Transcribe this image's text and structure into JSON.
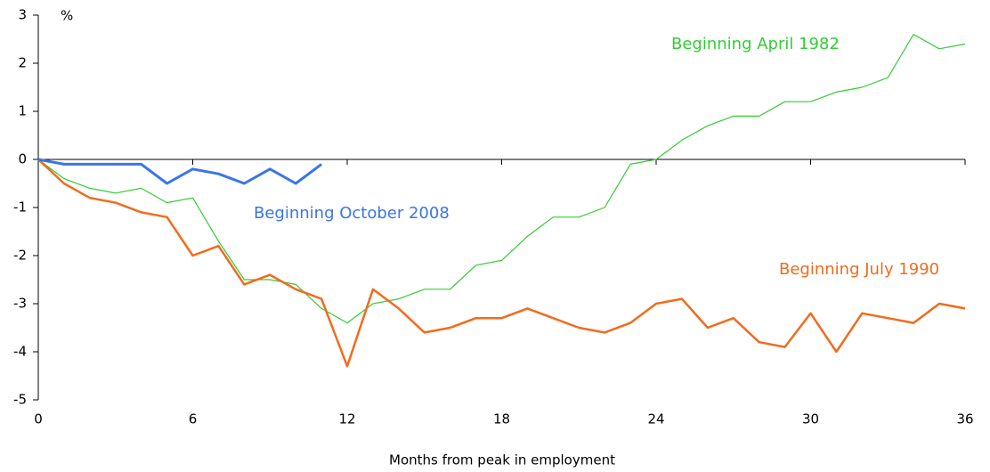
{
  "chart_data": {
    "type": "line",
    "y_unit": "%",
    "x_label": "Months from peak in employment",
    "x": [
      0,
      1,
      2,
      3,
      4,
      5,
      6,
      7,
      8,
      9,
      10,
      11,
      12,
      13,
      14,
      15,
      16,
      17,
      18,
      19,
      20,
      21,
      22,
      23,
      24,
      25,
      26,
      27,
      28,
      29,
      30,
      31,
      32,
      33,
      34,
      35,
      36
    ],
    "xlim": [
      0,
      36
    ],
    "xticks": [
      0,
      6,
      12,
      18,
      24,
      30,
      36
    ],
    "ylim": [
      -5,
      3
    ],
    "yticks": [
      -5,
      -4,
      -3,
      -2,
      -1,
      0,
      1,
      2,
      3
    ],
    "series": [
      {
        "name": "Beginning April 1982",
        "color": "#33cc33",
        "values": [
          0,
          -0.4,
          -0.6,
          -0.7,
          -0.6,
          -0.9,
          -0.8,
          -1.7,
          -2.5,
          -2.5,
          -2.6,
          -3.1,
          -3.4,
          -3.0,
          -2.9,
          -2.7,
          -2.7,
          -2.2,
          -2.1,
          -1.6,
          -1.2,
          -1.2,
          -1.0,
          -0.1,
          0.0,
          0.4,
          0.7,
          0.9,
          0.9,
          1.2,
          1.2,
          1.4,
          1.5,
          1.7,
          2.6,
          2.3,
          2.4
        ]
      },
      {
        "name": "Beginning July 1990",
        "color": "#f26b1d",
        "values": [
          0,
          -0.5,
          -0.8,
          -0.9,
          -1.1,
          -1.2,
          -2.0,
          -1.8,
          -2.6,
          -2.4,
          -2.7,
          -2.9,
          -4.3,
          -2.7,
          -3.1,
          -3.6,
          -3.5,
          -3.3,
          -3.3,
          -3.1,
          -3.3,
          -3.5,
          -3.6,
          -3.4,
          -3.0,
          -2.9,
          -3.5,
          -3.3,
          -3.8,
          -3.9,
          -3.2,
          -4.0,
          -3.2,
          -3.3,
          -3.4,
          -3.0,
          -3.1
        ]
      },
      {
        "name": "Beginning October 2008",
        "color": "#3a75e6",
        "values": [
          0,
          -0.1,
          -0.1,
          -0.1,
          -0.1,
          -0.5,
          -0.2,
          -0.3,
          -0.5,
          -0.2,
          -0.5,
          -0.1,
          null,
          null,
          null,
          null,
          null,
          null,
          null,
          null,
          null,
          null,
          null,
          null,
          null,
          null,
          null,
          null,
          null,
          null,
          null,
          null,
          null,
          null,
          null,
          null,
          null
        ]
      }
    ]
  }
}
